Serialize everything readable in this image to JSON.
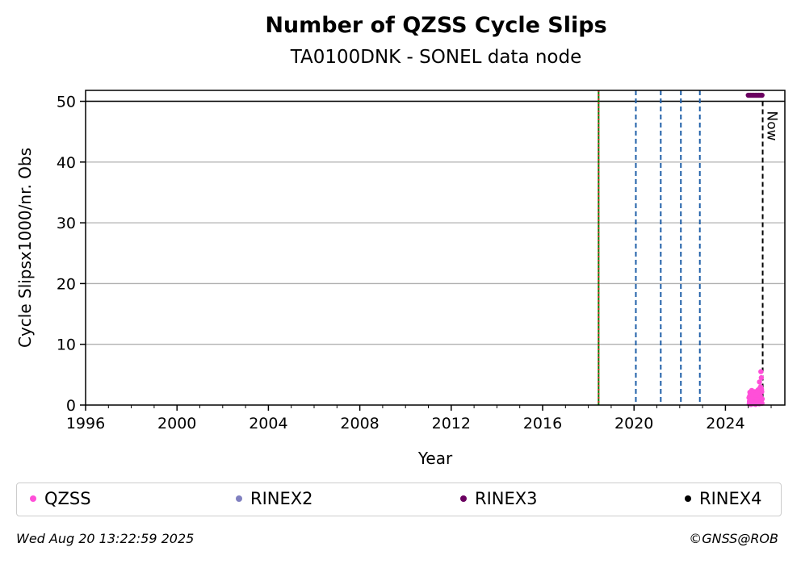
{
  "header": {
    "title": "Number of QZSS Cycle Slips",
    "subtitle": "TA0100DNK - SONEL data node"
  },
  "chart_data": {
    "type": "scatter",
    "title": "Number of QZSS Cycle Slips",
    "subtitle": "TA0100DNK - SONEL data node",
    "xlabel": "Year",
    "ylabel": "Cycle Slipsx1000/nr. Obs",
    "xlim": [
      1996,
      2026.6
    ],
    "ylim": [
      0,
      51.8
    ],
    "x_ticks": [
      1996,
      2000,
      2004,
      2008,
      2012,
      2016,
      2020,
      2024
    ],
    "y_ticks": [
      0,
      10,
      20,
      30,
      40,
      50
    ],
    "grid": "horizontal",
    "now_label": "Now",
    "now_x": 2025.63,
    "upper_limit_line": 50,
    "vertical_lines": [
      {
        "x": 2018.45,
        "color": "#008000",
        "style": "solid"
      },
      {
        "x": 2018.45,
        "color": "#d62728",
        "style": "dotted"
      },
      {
        "x": 2020.08,
        "color": "#1f5fa8",
        "style": "dashed"
      },
      {
        "x": 2021.17,
        "color": "#1f5fa8",
        "style": "dashed"
      },
      {
        "x": 2022.05,
        "color": "#1f5fa8",
        "style": "dashed"
      },
      {
        "x": 2022.88,
        "color": "#1f5fa8",
        "style": "dashed"
      }
    ],
    "series": [
      {
        "name": "QZSS",
        "color": "#ff4fd8",
        "x": [
          2025.03,
          2025.05,
          2025.07,
          2025.09,
          2025.11,
          2025.13,
          2025.15,
          2025.17,
          2025.19,
          2025.21,
          2025.23,
          2025.25,
          2025.27,
          2025.29,
          2025.31,
          2025.33,
          2025.35,
          2025.37,
          2025.39,
          2025.41,
          2025.43,
          2025.45,
          2025.47,
          2025.49,
          2025.51,
          2025.53,
          2025.55,
          2025.57,
          2025.59,
          2025.61,
          2025.04,
          2025.08,
          2025.12,
          2025.16,
          2025.2,
          2025.24,
          2025.28,
          2025.32,
          2025.36,
          2025.4,
          2025.44,
          2025.48,
          2025.52,
          2025.56,
          2025.6,
          2025.06,
          2025.14,
          2025.22,
          2025.3,
          2025.38,
          2025.46,
          2025.54,
          2025.58
        ],
        "y": [
          1.2,
          0.6,
          2.1,
          0.3,
          1.8,
          0.9,
          2.4,
          0.5,
          1.1,
          2.0,
          0.4,
          1.6,
          0.8,
          2.2,
          0.3,
          1.4,
          0.7,
          1.9,
          0.5,
          1.2,
          2.5,
          0.9,
          1.6,
          3.8,
          2.8,
          1.5,
          5.5,
          4.5,
          2.2,
          1.0,
          0.2,
          0.4,
          0.1,
          0.6,
          0.3,
          0.2,
          0.5,
          0.1,
          0.4,
          0.3,
          0.6,
          0.2,
          0.8,
          0.5,
          0.3,
          1.5,
          1.0,
          1.3,
          1.7,
          0.9,
          2.0,
          3.0,
          2.6
        ]
      },
      {
        "name": "RINEX2",
        "color": "#8080c0",
        "x": [],
        "y": []
      },
      {
        "name": "RINEX3",
        "color": "#6a0060",
        "x": [
          2025.0,
          2025.05,
          2025.1,
          2025.15,
          2025.2,
          2025.25,
          2025.3,
          2025.35,
          2025.4,
          2025.45,
          2025.5,
          2025.55,
          2025.6
        ],
        "y": [
          51,
          51,
          51,
          51,
          51,
          51,
          51,
          51,
          51,
          51,
          51,
          51,
          51
        ]
      },
      {
        "name": "RINEX4",
        "color": "#000000",
        "x": [],
        "y": []
      }
    ]
  },
  "legend": {
    "items": [
      {
        "label": "QZSS",
        "color": "#ff4fd8"
      },
      {
        "label": "RINEX2",
        "color": "#8080c0"
      },
      {
        "label": "RINEX3",
        "color": "#6a0060"
      },
      {
        "label": "RINEX4",
        "color": "#000000"
      }
    ]
  },
  "footer": {
    "timestamp": "Wed Aug 20 13:22:59 2025",
    "copyright": "©GNSS@ROB"
  }
}
